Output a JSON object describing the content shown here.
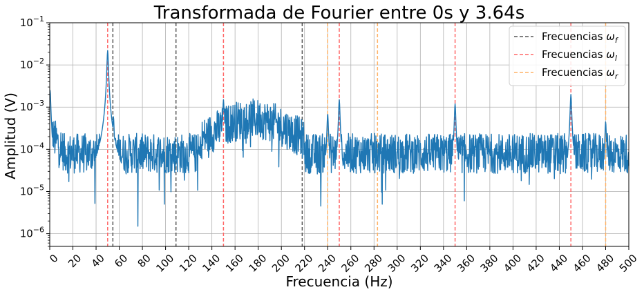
{
  "chart_data": {
    "type": "line",
    "title": "Transformada de Fourier entre 0s y 3.64s",
    "xlabel": "Frecuencia (Hz)",
    "ylabel": "Amplitud (V)",
    "xlim": [
      0,
      500
    ],
    "ylim": [
      5e-07,
      0.1
    ],
    "yscale": "log",
    "grid": true,
    "legend_position": "top-right",
    "xticks": [
      0,
      20,
      40,
      60,
      80,
      100,
      120,
      140,
      160,
      180,
      200,
      220,
      240,
      260,
      280,
      300,
      320,
      340,
      360,
      380,
      400,
      420,
      440,
      460,
      480,
      500
    ],
    "yticks": [
      {
        "value": 1e-06,
        "base": "10",
        "exp": "−6"
      },
      {
        "value": 1e-05,
        "base": "10",
        "exp": "−5"
      },
      {
        "value": 0.0001,
        "base": "10",
        "exp": "−4"
      },
      {
        "value": 0.001,
        "base": "10",
        "exp": "−3"
      },
      {
        "value": 0.01,
        "base": "10",
        "exp": "−2"
      },
      {
        "value": 0.1,
        "base": "10",
        "exp": "−1"
      }
    ],
    "series": [
      {
        "name": "",
        "color": "#1f77b4",
        "note": "noisy spectrum; noise floor ~1e-4 V with spikes",
        "peaks": [
          {
            "x": 0.3,
            "y": 0.0025
          },
          {
            "x": 50,
            "y": 0.022
          },
          {
            "x": 55,
            "y": 0.0006
          },
          {
            "x": 150,
            "y": 0.0015
          },
          {
            "x": 240,
            "y": 0.0007
          },
          {
            "x": 250,
            "y": 0.0015
          },
          {
            "x": 350,
            "y": 0.0012
          },
          {
            "x": 450,
            "y": 0.002
          },
          {
            "x": 480,
            "y": 0.00045
          }
        ],
        "dips": [
          {
            "x": 39,
            "y": 5.2e-06
          },
          {
            "x": 76,
            "y": 1.5e-06
          },
          {
            "x": 99,
            "y": 5e-06
          },
          {
            "x": 234,
            "y": 4.5e-06
          },
          {
            "x": 287,
            "y": 5e-06
          },
          {
            "x": 358,
            "y": 6e-06
          }
        ],
        "broad_bump": {
          "from": 140,
          "to": 210,
          "level": 0.00045
        }
      }
    ],
    "reference_lines": [
      {
        "name": "Frecuencias ω_f",
        "color": "#555555",
        "x": [
          54.5,
          109,
          218
        ]
      },
      {
        "name": "Frecuencias ω_l",
        "color": "#ff6666",
        "x": [
          50,
          150,
          250,
          350,
          450
        ]
      },
      {
        "name": "Frecuencias ω_r",
        "color": "#ffb266",
        "x": [
          240,
          283,
          480
        ]
      }
    ],
    "legend": [
      {
        "label": "Frecuencias ",
        "sub": "f",
        "color": "#555555"
      },
      {
        "label": "Frecuencias ",
        "sub": "l",
        "color": "#ff6666"
      },
      {
        "label": "Frecuencias ",
        "sub": "r",
        "color": "#ffb266"
      }
    ]
  }
}
